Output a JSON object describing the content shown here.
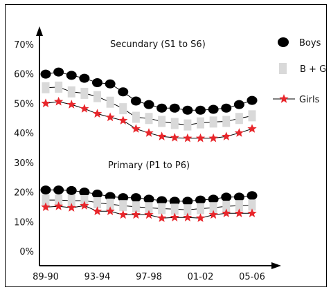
{
  "chart_data": {
    "type": "line",
    "ylim": [
      0,
      70
    ],
    "y_ticks": [
      "0%",
      "10%",
      "20%",
      "30%",
      "40%",
      "50%",
      "60%",
      "70%"
    ],
    "x": [
      "89-90",
      "90-91",
      "91-92",
      "92-93",
      "93-94",
      "94-95",
      "95-96",
      "96-97",
      "97-98",
      "98-99",
      "99-00",
      "00-01",
      "01-02",
      "02-03",
      "03-04",
      "04-05",
      "05-06"
    ],
    "x_tick_labels": [
      "89-90",
      "93-94",
      "97-98",
      "01-02",
      "05-06"
    ],
    "grid": false,
    "legend_position": "top-right",
    "panels": [
      {
        "title": "Secundary (S1 to S6)",
        "series": [
          {
            "name": "Boys",
            "marker": "circle",
            "color": "#000000",
            "values": [
              59.9,
              60.6,
              59.5,
              58.5,
              57.0,
              56.6,
              53.9,
              50.8,
              49.6,
              48.4,
              48.4,
              47.7,
              47.7,
              48.0,
              48.4,
              49.6,
              51.0
            ]
          },
          {
            "name": "B + G",
            "marker": "square",
            "color": "#d9d9d9",
            "values": [
              55.3,
              55.5,
              53.9,
              53.4,
              52.3,
              50.4,
              48.2,
              45.3,
              44.9,
              43.9,
              43.2,
              42.7,
              43.4,
              43.7,
              43.9,
              44.9,
              45.8
            ]
          },
          {
            "name": "Girls",
            "marker": "star",
            "color": "#e8262b",
            "values": [
              50.0,
              50.6,
              49.6,
              48.2,
              46.5,
              45.3,
              44.2,
              41.4,
              40.0,
              38.8,
              38.4,
              38.2,
              38.2,
              38.2,
              38.8,
              40.0,
              41.4
            ]
          }
        ]
      },
      {
        "title": "Primary (P1 to P6)",
        "series": [
          {
            "name": "Boys",
            "marker": "circle",
            "color": "#000000",
            "values": [
              20.7,
              20.7,
              20.5,
              20.0,
              19.3,
              18.5,
              18.1,
              18.1,
              17.6,
              17.1,
              16.9,
              16.9,
              17.3,
              17.6,
              18.3,
              18.3,
              18.8
            ]
          },
          {
            "name": "B + G",
            "marker": "square",
            "color": "#d9d9d9",
            "values": [
              17.3,
              17.3,
              17.1,
              17.1,
              16.4,
              15.9,
              15.4,
              15.0,
              14.7,
              14.4,
              14.2,
              14.0,
              14.4,
              14.7,
              15.2,
              15.4,
              15.6
            ]
          },
          {
            "name": "Girls",
            "marker": "star",
            "color": "#e8262b",
            "values": [
              14.9,
              15.2,
              14.7,
              15.4,
              13.5,
              13.5,
              12.3,
              12.3,
              12.3,
              11.2,
              11.4,
              11.4,
              11.2,
              12.3,
              12.8,
              12.8,
              12.8
            ]
          }
        ]
      }
    ]
  }
}
